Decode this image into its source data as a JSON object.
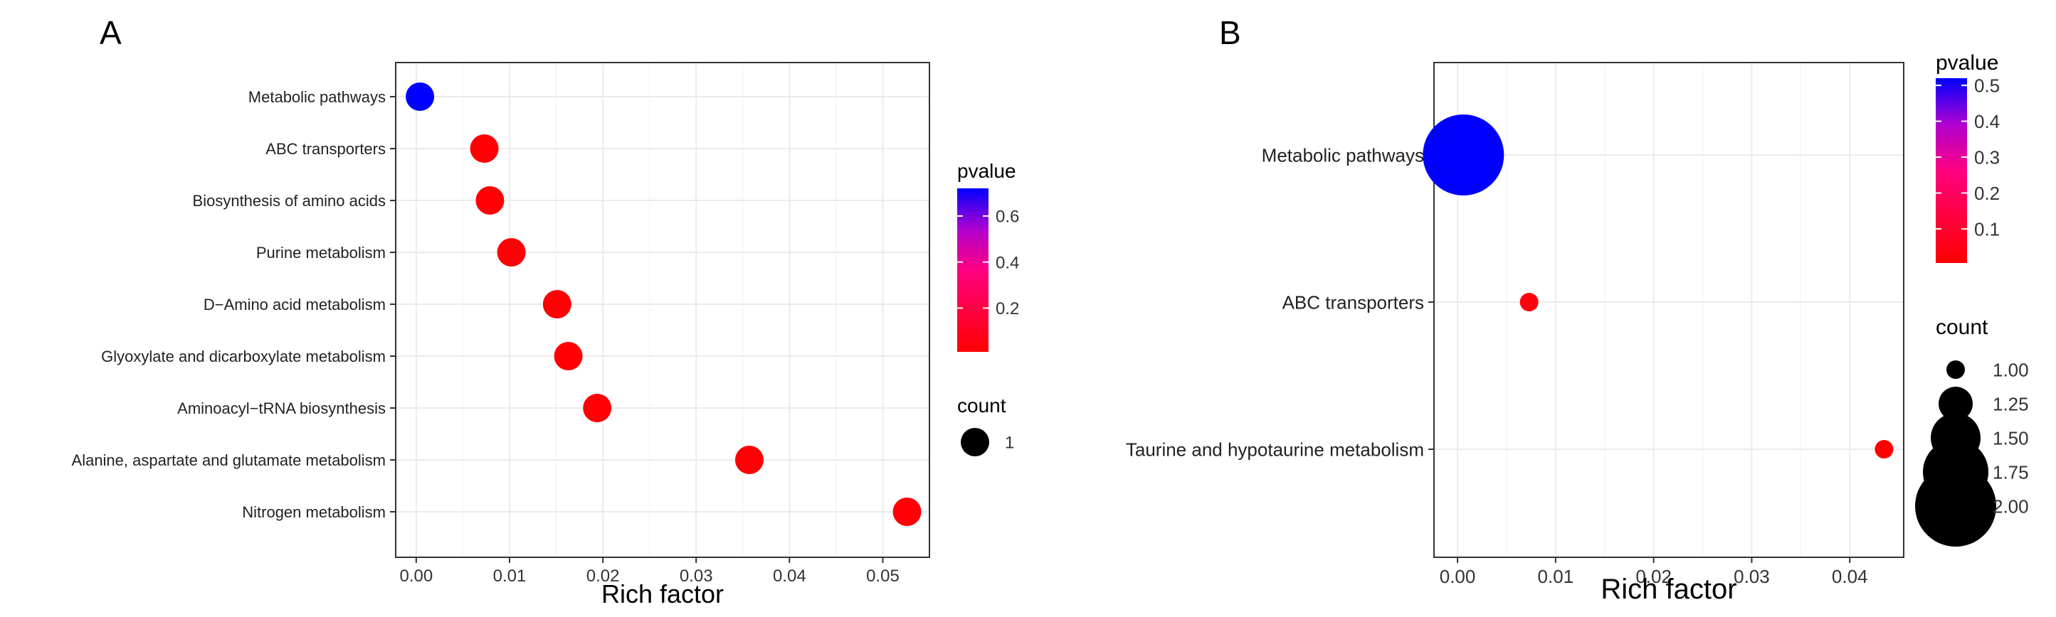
{
  "chart_data": [
    {
      "panel_label": "A",
      "type": "scatter",
      "xlabel": "Rich factor",
      "x_ticks": [
        "0.00",
        "0.01",
        "0.02",
        "0.03",
        "0.04",
        "0.05"
      ],
      "xlim": [
        -0.0022,
        0.055
      ],
      "categories": [
        "Metabolic pathways",
        "ABC transporters",
        "Biosynthesis of amino acids",
        "Purine metabolism",
        "D−Amino acid metabolism",
        "Glyoxylate and dicarboxylate metabolism",
        "Aminoacyl−tRNA biosynthesis",
        "Alanine, aspartate and glutamate metabolism",
        "Nitrogen metabolism"
      ],
      "points": [
        {
          "category": "Metabolic pathways",
          "rich_factor": 0.0004,
          "pvalue": 0.72,
          "count": 1
        },
        {
          "category": "ABC transporters",
          "rich_factor": 0.0073,
          "pvalue": 0.02,
          "count": 1
        },
        {
          "category": "Biosynthesis of amino acids",
          "rich_factor": 0.0079,
          "pvalue": 0.02,
          "count": 1
        },
        {
          "category": "Purine metabolism",
          "rich_factor": 0.0102,
          "pvalue": 0.03,
          "count": 1
        },
        {
          "category": "D−Amino acid metabolism",
          "rich_factor": 0.0151,
          "pvalue": 0.02,
          "count": 1
        },
        {
          "category": "Glyoxylate and dicarboxylate metabolism",
          "rich_factor": 0.0163,
          "pvalue": 0.02,
          "count": 1
        },
        {
          "category": "Aminoacyl−tRNA biosynthesis",
          "rich_factor": 0.0194,
          "pvalue": 0.02,
          "count": 1
        },
        {
          "category": "Alanine, aspartate and glutamate metabolism",
          "rich_factor": 0.0357,
          "pvalue": 0.02,
          "count": 1
        },
        {
          "category": "Nitrogen metabolism",
          "rich_factor": 0.0526,
          "pvalue": 0.02,
          "count": 1
        }
      ],
      "color_legend": {
        "title": "pvalue",
        "min": 0.01,
        "max": 0.72,
        "ticks": [
          0.2,
          0.4,
          0.6
        ],
        "tick_labels": [
          "0.2",
          "0.4",
          "0.6"
        ],
        "low_color": "#ff0000",
        "high_color": "#0000ff"
      },
      "size_legend": {
        "title": "count",
        "labels": [
          "1"
        ],
        "values": [
          1
        ]
      }
    },
    {
      "panel_label": "B",
      "type": "scatter",
      "xlabel": "Rich factor",
      "x_ticks": [
        "0.00",
        "0.01",
        "0.02",
        "0.03",
        "0.04"
      ],
      "xlim": [
        -0.0024,
        0.0455
      ],
      "categories": [
        "Metabolic pathways",
        "ABC transporters",
        "Taurine and hypotaurine metabolism"
      ],
      "points": [
        {
          "category": "Metabolic pathways",
          "rich_factor": 0.0006,
          "pvalue": 0.52,
          "count": 2
        },
        {
          "category": "ABC transporters",
          "rich_factor": 0.0073,
          "pvalue": 0.03,
          "count": 1
        },
        {
          "category": "Taurine and hypotaurine metabolism",
          "rich_factor": 0.0435,
          "pvalue": 0.01,
          "count": 1
        }
      ],
      "color_legend": {
        "title": "pvalue",
        "min": 0.005,
        "max": 0.52,
        "ticks": [
          0.1,
          0.2,
          0.3,
          0.4,
          0.5
        ],
        "tick_labels": [
          "0.1",
          "0.2",
          "0.3",
          "0.4",
          "0.5"
        ],
        "low_color": "#ff0000",
        "high_color": "#0000ff"
      },
      "size_legend": {
        "title": "count",
        "labels": [
          "1.00",
          "1.25",
          "1.50",
          "1.75",
          "2.00"
        ],
        "values": [
          1.0,
          1.25,
          1.5,
          1.75,
          2.0
        ]
      }
    }
  ]
}
